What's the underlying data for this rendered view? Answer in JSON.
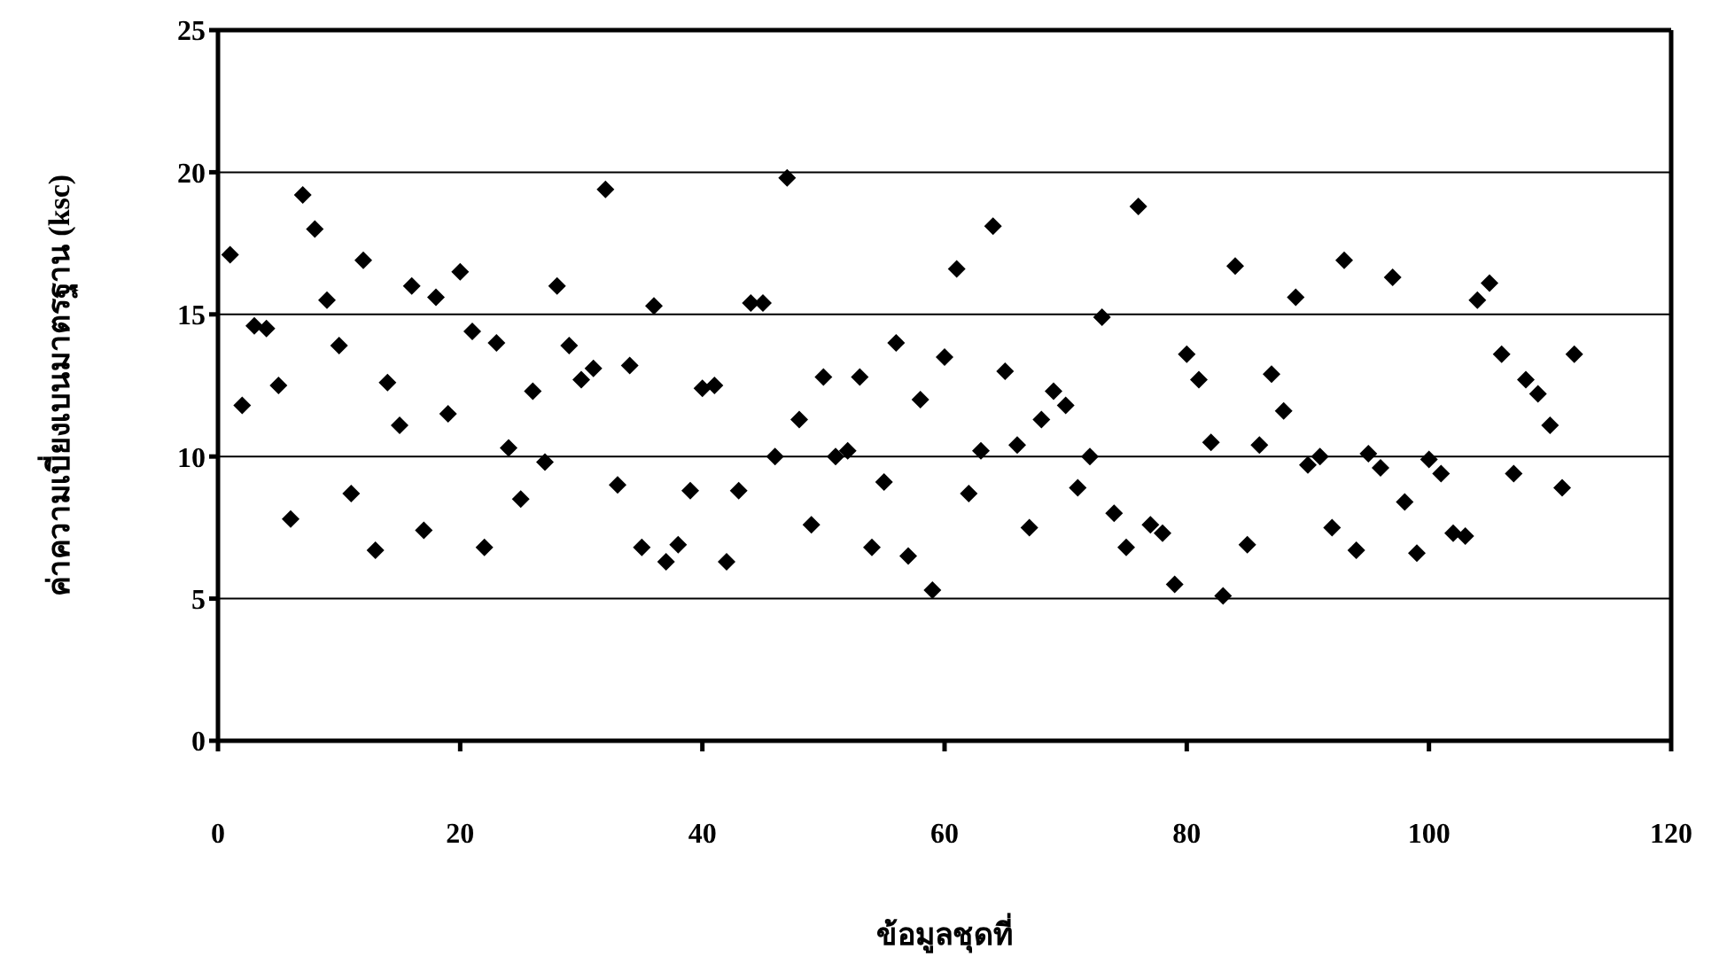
{
  "chart_data": {
    "type": "scatter",
    "xlabel": "ข้อมูลชุดที่",
    "ylabel": "ค่าความเบี่ยงเบนมาตรฐาน  (ksc)",
    "xlim": [
      0,
      120
    ],
    "xticks": [
      0,
      20,
      40,
      60,
      80,
      100,
      120
    ],
    "ylim": [
      0,
      25
    ],
    "yticks": [
      0,
      5,
      10,
      15,
      20,
      25
    ],
    "grid": "y",
    "marker": "diamond",
    "legend": false,
    "x": [
      1,
      2,
      3,
      4,
      5,
      6,
      7,
      8,
      9,
      10,
      11,
      12,
      13,
      14,
      15,
      16,
      17,
      18,
      19,
      20,
      21,
      22,
      23,
      24,
      25,
      26,
      27,
      28,
      29,
      30,
      31,
      32,
      33,
      34,
      35,
      36,
      37,
      38,
      39,
      40,
      41,
      42,
      43,
      44,
      45,
      46,
      47,
      48,
      49,
      50,
      51,
      52,
      53,
      54,
      55,
      56,
      57,
      58,
      59,
      60,
      61,
      62,
      63,
      64,
      65,
      66,
      67,
      68,
      69,
      70,
      71,
      72,
      73,
      74,
      75,
      76,
      77,
      78,
      79,
      80,
      81,
      82,
      83,
      84,
      85,
      86,
      87,
      88,
      89,
      90,
      91,
      92,
      93,
      94,
      95,
      96,
      97,
      98,
      99,
      100,
      101,
      102,
      103,
      104,
      105,
      106,
      107,
      108,
      109,
      110,
      111,
      112
    ],
    "series": [
      {
        "color": "#000000",
        "values": [
          17.1,
          11.8,
          14.6,
          14.5,
          12.5,
          7.8,
          19.2,
          18.0,
          15.5,
          13.9,
          8.7,
          16.9,
          6.7,
          12.6,
          11.1,
          16.0,
          7.4,
          15.6,
          11.5,
          16.5,
          14.4,
          6.8,
          14.0,
          10.3,
          8.5,
          12.3,
          9.8,
          16.0,
          13.9,
          12.7,
          13.1,
          19.4,
          9.0,
          13.2,
          6.8,
          15.3,
          6.3,
          6.9,
          8.8,
          12.4,
          12.5,
          6.3,
          8.8,
          15.4,
          15.4,
          10.0,
          19.8,
          11.3,
          7.6,
          12.8,
          10.0,
          10.2,
          12.8,
          6.8,
          9.1,
          14.0,
          6.5,
          12.0,
          5.3,
          13.5,
          16.6,
          8.7,
          10.2,
          18.1,
          13.0,
          10.4,
          7.5,
          11.3,
          12.3,
          11.8,
          8.9,
          10.0,
          14.9,
          8.0,
          6.8,
          18.8,
          7.6,
          7.3,
          5.5,
          13.6,
          12.7,
          10.5,
          5.1,
          16.7,
          6.9,
          10.4,
          12.9,
          11.6,
          15.6,
          9.7,
          10.0,
          7.5,
          16.9,
          6.7,
          10.1,
          9.6,
          16.3,
          8.4,
          6.6,
          9.9,
          9.4,
          7.3,
          7.2,
          15.5,
          16.1,
          13.6,
          9.4,
          12.7,
          12.2,
          11.1,
          8.9,
          13.6
        ]
      }
    ]
  }
}
